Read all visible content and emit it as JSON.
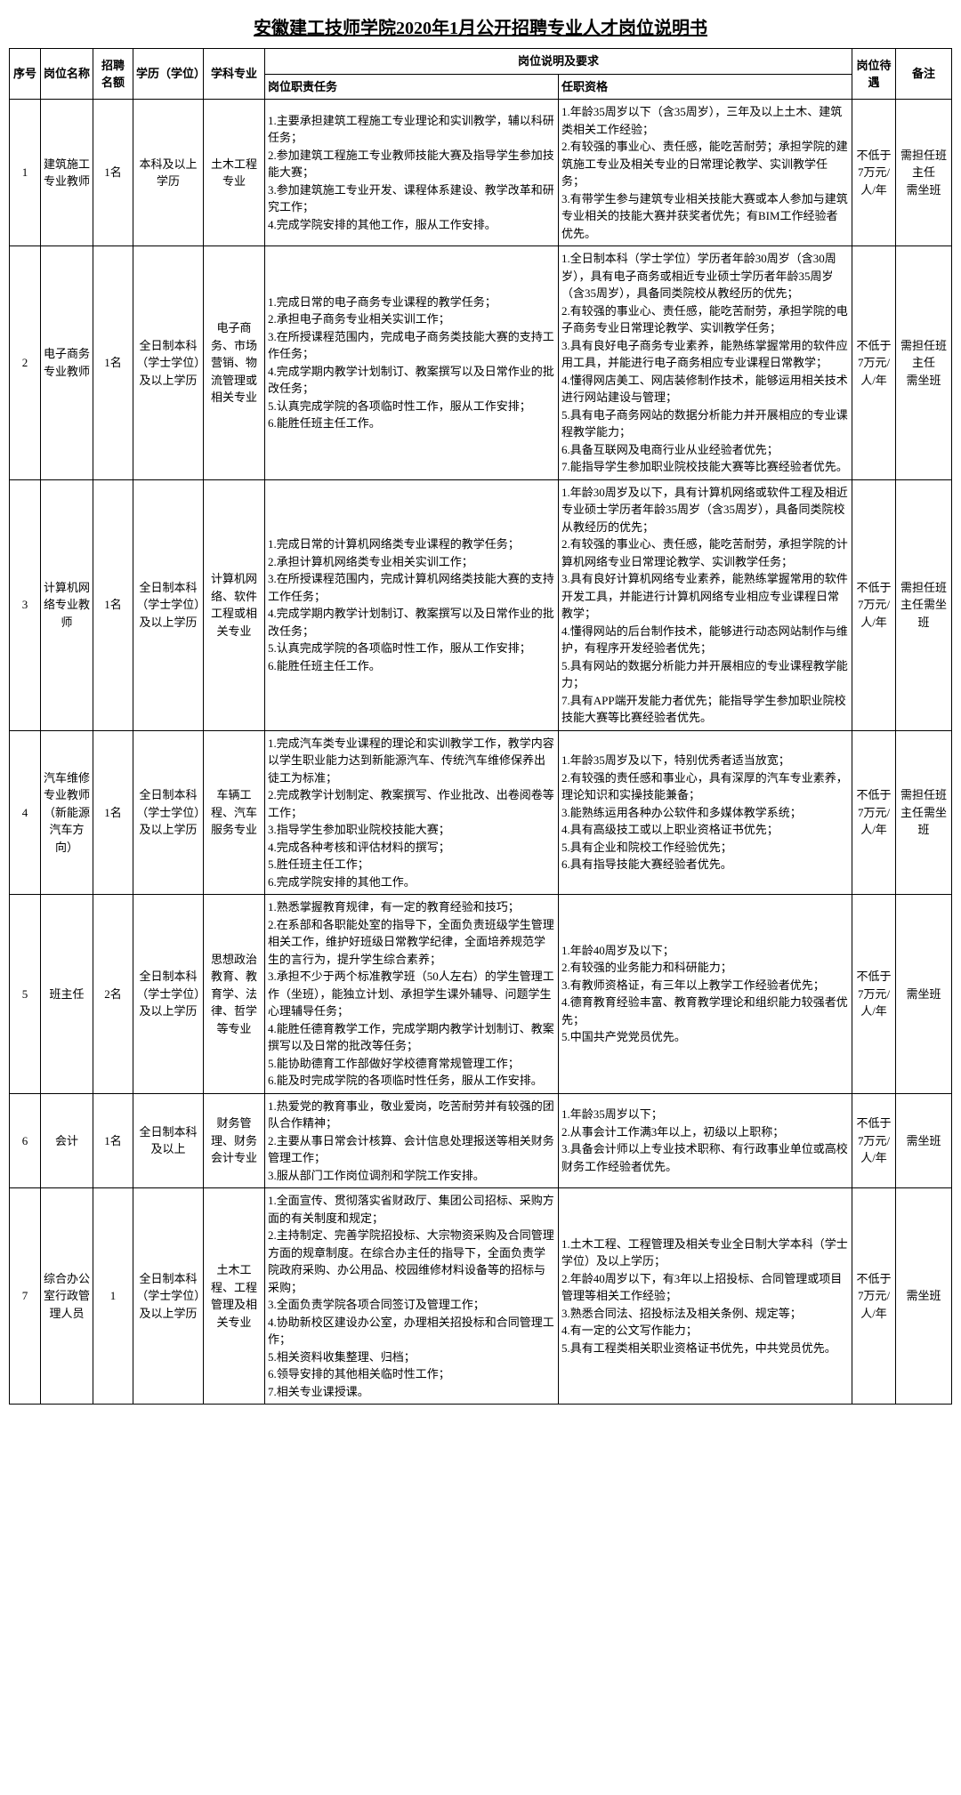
{
  "title": "安徽建工技师学院2020年1月公开招聘专业人才岗位说明书",
  "headers": {
    "idx": "序号",
    "name": "岗位名称",
    "quota": "招聘名额",
    "edu": "学历（学位）",
    "major": "学科专业",
    "group": "岗位说明及要求",
    "duty": "岗位职责任务",
    "qual": "任职资格",
    "salary": "岗位待遇",
    "remark": "备注"
  },
  "rows": [
    {
      "idx": "1",
      "name": "建筑施工专业教师",
      "quota": "1名",
      "edu": "本科及以上学历",
      "major": "土木工程专业",
      "duty": "1.主要承担建筑工程施工专业理论和实训教学，辅以科研任务；\n2.参加建筑工程施工专业教师技能大赛及指导学生参加技能大赛；\n3.参加建筑施工专业开发、课程体系建设、教学改革和研究工作；\n4.完成学院安排的其他工作，服从工作安排。",
      "qual": "1.年龄35周岁以下（含35周岁），三年及以上土木、建筑类相关工作经验；\n2.有较强的事业心、责任感，能吃苦耐劳；承担学院的建筑施工专业及相关专业的日常理论教学、实训教学任务；\n3.有带学生参与建筑专业相关技能大赛或本人参加与建筑专业相关的技能大赛并获奖者优先；有BIM工作经验者优先。",
      "salary": "不低于7万元/人/年",
      "remark": "需担任班主任\n需坐班"
    },
    {
      "idx": "2",
      "name": "电子商务专业教师",
      "quota": "1名",
      "edu": "全日制本科（学士学位）及以上学历",
      "major": "电子商务、市场营销、物流管理或相关专业",
      "duty": "1.完成日常的电子商务专业课程的教学任务；\n2.承担电子商务专业相关实训工作；\n3.在所授课程范围内，完成电子商务类技能大赛的支持工作任务；\n4.完成学期内教学计划制订、教案撰写以及日常作业的批改任务；\n5.认真完成学院的各项临时性工作，服从工作安排；\n6.能胜任班主任工作。",
      "qual": "1.全日制本科（学士学位）学历者年龄30周岁（含30周岁），具有电子商务或相近专业硕士学历者年龄35周岁（含35周岁），具备同类院校从教经历的优先；\n2.有较强的事业心、责任感，能吃苦耐劳，承担学院的电子商务专业日常理论教学、实训教学任务；\n3.具有良好电子商务专业素养，能熟练掌握常用的软件应用工具，并能进行电子商务相应专业课程日常教学；\n4.懂得网店美工、网店装修制作技术，能够运用相关技术进行网站建设与管理；\n5.具有电子商务网站的数据分析能力并开展相应的专业课程教学能力；\n6.具备互联网及电商行业从业经验者优先；\n7.能指导学生参加职业院校技能大赛等比赛经验者优先。",
      "salary": "不低于7万元/人/年",
      "remark": "需担任班主任\n需坐班"
    },
    {
      "idx": "3",
      "name": "计算机网络专业教师",
      "quota": "1名",
      "edu": "全日制本科（学士学位）及以上学历",
      "major": "计算机网络、软件工程或相关专业",
      "duty": "1.完成日常的计算机网络类专业课程的教学任务；\n2.承担计算机网络类专业相关实训工作；\n3.在所授课程范围内，完成计算机网络类技能大赛的支持工作任务；\n4.完成学期内教学计划制订、教案撰写以及日常作业的批改任务；\n5.认真完成学院的各项临时性工作，服从工作安排；\n6.能胜任班主任工作。",
      "qual": "1.年龄30周岁及以下，具有计算机网络或软件工程及相近专业硕士学历者年龄35周岁（含35周岁），具备同类院校从教经历的优先；\n2.有较强的事业心、责任感，能吃苦耐劳，承担学院的计算机网络专业日常理论教学、实训教学任务；\n3.具有良好计算机网络专业素养，能熟练掌握常用的软件开发工具，并能进行计算机网络专业相应专业课程日常教学；\n4.懂得网站的后台制作技术，能够进行动态网站制作与维护，有程序开发经验者优先；\n5.具有网站的数据分析能力并开展相应的专业课程教学能力；\n7.具有APP端开发能力者优先；能指导学生参加职业院校技能大赛等比赛经验者优先。",
      "salary": "不低于7万元/人/年",
      "remark": "需担任班主任需坐班"
    },
    {
      "idx": "4",
      "name": "汽车维修专业教师（新能源汽车方向）",
      "quota": "1名",
      "edu": "全日制本科（学士学位）及以上学历",
      "major": "车辆工程、汽车服务专业",
      "duty": "1.完成汽车类专业课程的理论和实训教学工作，教学内容以学生职业能力达到新能源汽车、传统汽车维修保养出徒工为标准；\n2.完成教学计划制定、教案撰写、作业批改、出卷阅卷等工作；\n3.指导学生参加职业院校技能大赛；\n4.完成各种考核和评估材料的撰写；\n5.胜任班主任工作；\n6.完成学院安排的其他工作。",
      "qual": "1.年龄35周岁及以下，特别优秀者适当放宽；\n2.有较强的责任感和事业心，具有深厚的汽车专业素养，理论知识和实操技能兼备；\n3.能熟练运用各种办公软件和多媒体教学系统；\n4.具有高级技工或以上职业资格证书优先；\n5.具有企业和院校工作经验优先；\n6.具有指导技能大赛经验者优先。",
      "salary": "不低于7万元/人/年",
      "remark": "需担任班主任需坐班"
    },
    {
      "idx": "5",
      "name": "班主任",
      "quota": "2名",
      "edu": "全日制本科（学士学位）及以上学历",
      "major": "思想政治教育、教育学、法律、哲学等专业",
      "duty": "1.熟悉掌握教育规律，有一定的教育经验和技巧；\n2.在系部和各职能处室的指导下，全面负责班级学生管理相关工作，维护好班级日常教学纪律，全面培养规范学生的言行为，提升学生综合素养；\n3.承担不少于两个标准教学班（50人左右）的学生管理工作（坐班），能独立计划、承担学生课外辅导、问题学生心理辅导任务；\n4.能胜任德育教学工作，完成学期内教学计划制订、教案撰写以及日常的批改等任务；\n5.能协助德育工作部做好学校德育常规管理工作；\n6.能及时完成学院的各项临时性任务，服从工作安排。",
      "qual": "1.年龄40周岁及以下；\n2.有较强的业务能力和科研能力；\n3.有教师资格证，有三年以上教学工作经验者优先；\n4.德育教育经验丰富、教育教学理论和组织能力较强者优先；\n5.中国共产党党员优先。",
      "salary": "不低于7万元/人/年",
      "remark": "需坐班"
    },
    {
      "idx": "6",
      "name": "会计",
      "quota": "1名",
      "edu": "全日制本科及以上",
      "major": "财务管理、财务会计专业",
      "duty": "1.热爱党的教育事业，敬业爱岗，吃苦耐劳并有较强的团队合作精神；\n2.主要从事日常会计核算、会计信息处理报送等相关财务管理工作；\n3.服从部门工作岗位调剂和学院工作安排。",
      "qual": "1.年龄35周岁以下；\n2.从事会计工作满3年以上，初级以上职称；\n3.具备会计师以上专业技术职称、有行政事业单位或高校财务工作经验者优先。",
      "salary": "不低于7万元/人/年",
      "remark": "需坐班"
    },
    {
      "idx": "7",
      "name": "综合办公室行政管理人员",
      "quota": "1",
      "edu": "全日制本科（学士学位）及以上学历",
      "major": "土木工程、工程管理及相关专业",
      "duty": "1.全面宣传、贯彻落实省财政厅、集团公司招标、采购方面的有关制度和规定；\n2.主持制定、完善学院招投标、大宗物资采购及合同管理方面的规章制度。在综合办主任的指导下，全面负责学院政府采购、办公用品、校园维修材料设备等的招标与采购；\n3.全面负责学院各项合同签订及管理工作；\n4.协助新校区建设办公室，办理相关招投标和合同管理工作；\n5.相关资料收集整理、归档；\n6.领导安排的其他相关临时性工作；\n7.相关专业课授课。",
      "qual": "1.土木工程、工程管理及相关专业全日制大学本科（学士学位）及以上学历；\n2.年龄40周岁以下，有3年以上招投标、合同管理或项目管理等相关工作经验；\n3.熟悉合同法、招投标法及相关条例、规定等；\n4.有一定的公文写作能力；\n5.具有工程类相关职业资格证书优先，中共党员优先。",
      "salary": "不低于7万元/人/年",
      "remark": "需坐班"
    }
  ]
}
